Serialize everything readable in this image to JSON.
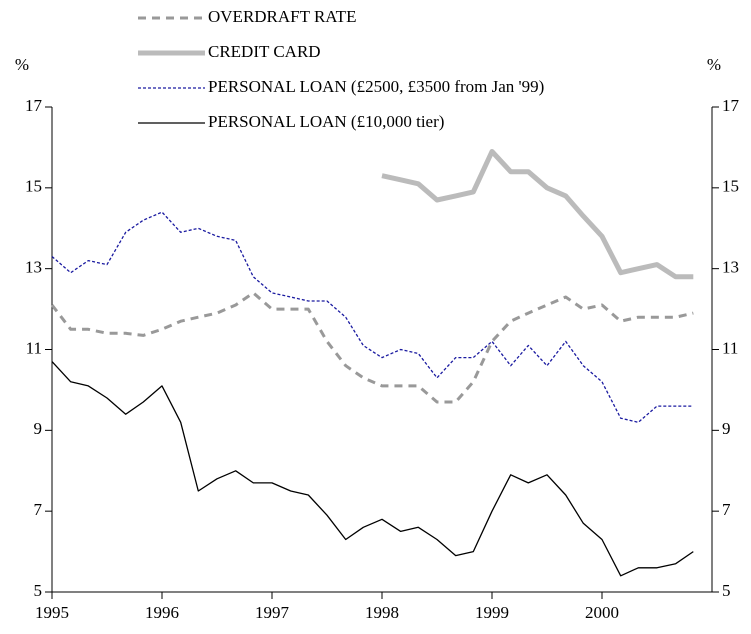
{
  "chart_data": {
    "type": "line",
    "y_label": "%",
    "y2_label": "%",
    "x": [
      1995,
      1995.17,
      1995.33,
      1995.5,
      1995.67,
      1995.83,
      1996,
      1996.17,
      1996.33,
      1996.5,
      1996.67,
      1996.83,
      1997,
      1997.17,
      1997.33,
      1997.5,
      1997.67,
      1997.83,
      1998,
      1998.17,
      1998.33,
      1998.5,
      1998.67,
      1998.83,
      1999,
      1999.17,
      1999.33,
      1999.5,
      1999.67,
      1999.83,
      2000,
      2000.17,
      2000.33,
      2000.5,
      2000.67,
      2000.83
    ],
    "series": [
      {
        "name": "OVERDRAFT RATE",
        "color": "#999999",
        "style": "dashed",
        "values": [
          12.1,
          11.5,
          11.5,
          11.4,
          11.4,
          11.35,
          11.5,
          11.7,
          11.8,
          11.9,
          12.1,
          12.4,
          12.0,
          12.0,
          12.0,
          11.2,
          10.6,
          10.3,
          10.1,
          10.1,
          10.1,
          9.7,
          9.7,
          10.2,
          11.2,
          11.7,
          11.9,
          12.1,
          12.3,
          12.0,
          12.1,
          11.7,
          11.8,
          11.8,
          11.8,
          11.9
        ]
      },
      {
        "name": "CREDIT CARD",
        "color": "#bbbbbb",
        "style": "thick",
        "values": [
          null,
          null,
          null,
          null,
          null,
          null,
          null,
          null,
          null,
          null,
          null,
          null,
          null,
          null,
          null,
          null,
          null,
          null,
          15.3,
          15.2,
          15.1,
          14.7,
          14.8,
          14.9,
          15.9,
          15.4,
          15.4,
          15.0,
          14.8,
          14.3,
          13.8,
          12.9,
          13.0,
          13.1,
          12.8,
          12.8
        ]
      },
      {
        "name": "PERSONAL LOAN (£2500, £3500 from Jan '99)",
        "color": "#1a1aa0",
        "style": "dotted",
        "values": [
          13.3,
          12.9,
          13.2,
          13.1,
          13.9,
          14.2,
          14.4,
          13.9,
          14.0,
          13.8,
          13.7,
          12.8,
          12.4,
          12.3,
          12.2,
          12.2,
          11.8,
          11.1,
          10.8,
          11.0,
          10.9,
          10.3,
          10.8,
          10.8,
          11.2,
          10.6,
          11.1,
          10.6,
          11.2,
          10.6,
          10.2,
          9.3,
          9.2,
          9.6,
          9.6,
          9.6
        ]
      },
      {
        "name": "PERSONAL LOAN (£10,000 tier)",
        "color": "#000000",
        "style": "solid",
        "values": [
          10.7,
          10.2,
          10.1,
          9.8,
          9.4,
          9.7,
          10.1,
          9.2,
          7.5,
          7.8,
          8.0,
          7.7,
          7.7,
          7.5,
          7.4,
          6.9,
          6.3,
          6.6,
          6.8,
          6.5,
          6.6,
          6.3,
          5.9,
          6.0,
          7.0,
          7.9,
          7.7,
          7.9,
          7.4,
          6.7,
          6.3,
          5.4,
          5.6,
          5.6,
          5.7,
          6.0
        ]
      }
    ],
    "xlim": [
      1995,
      2001
    ],
    "xticks": [
      1995,
      1996,
      1997,
      1998,
      1999,
      2000
    ],
    "ylim": [
      5,
      17
    ],
    "yticks": [
      5,
      7,
      9,
      11,
      13,
      15,
      17
    ]
  }
}
